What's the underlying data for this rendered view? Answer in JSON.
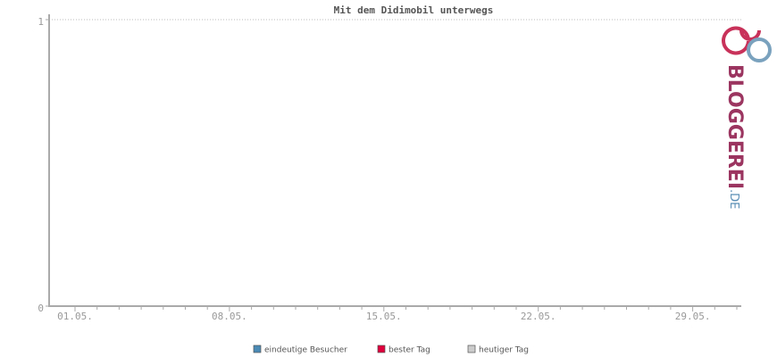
{
  "chart_data": {
    "type": "line",
    "title": "Mit dem Didimobil unterwegs",
    "categories": [
      "01.05.",
      null,
      null,
      null,
      null,
      null,
      null,
      "08.05.",
      null,
      null,
      null,
      null,
      null,
      null,
      "15.05.",
      null,
      null,
      null,
      null,
      null,
      null,
      "22.05.",
      null,
      null,
      null,
      null,
      null,
      null,
      "29.05.",
      null,
      null
    ],
    "series": [
      {
        "name": "eindeutige Besucher",
        "color": "#4a8ab5",
        "values": [
          0,
          0,
          0,
          0,
          0,
          0,
          0,
          0,
          0,
          0,
          0,
          0,
          0,
          0,
          0,
          0,
          0,
          0,
          0,
          0,
          0,
          0,
          0,
          0,
          0,
          0,
          0,
          0,
          0,
          0,
          0
        ]
      },
      {
        "name": "bester Tag",
        "color": "#e0003c",
        "values": [
          0,
          0,
          0,
          0,
          0,
          0,
          0,
          0,
          0,
          0,
          0,
          0,
          0,
          0,
          0,
          0,
          0,
          0,
          0,
          0,
          0,
          0,
          0,
          0,
          0,
          0,
          0,
          0,
          0,
          0,
          0
        ]
      },
      {
        "name": "heutiger Tag",
        "color": "#cccccc",
        "values": [
          0,
          0,
          0,
          0,
          0,
          0,
          0,
          0,
          0,
          0,
          0,
          0,
          0,
          0,
          0,
          0,
          0,
          0,
          0,
          0,
          0,
          0,
          0,
          0,
          0,
          0,
          0,
          0,
          0,
          0,
          0
        ]
      }
    ],
    "ylim": [
      0,
      1
    ],
    "yticks": [
      0,
      1
    ],
    "grid": true,
    "legend": "bottom",
    "logo": {
      "text": "BLOGGEREI",
      "suffix": ".DE"
    }
  }
}
